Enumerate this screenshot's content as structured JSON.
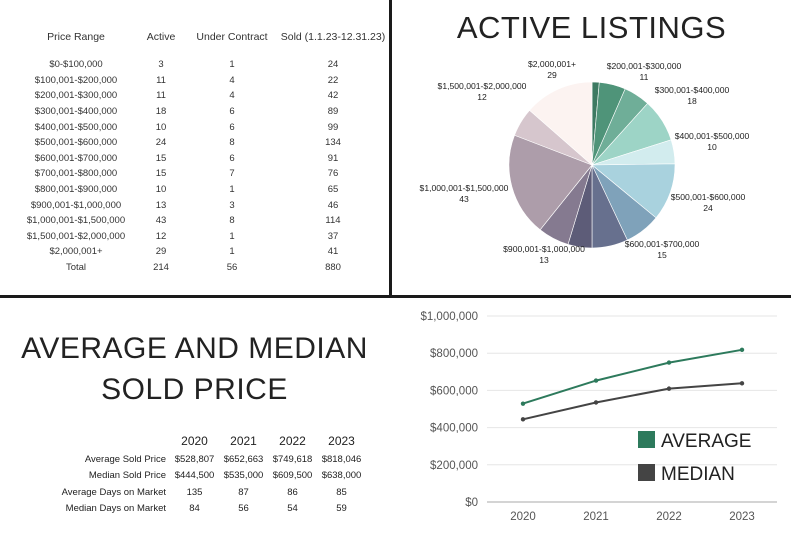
{
  "listing_table": {
    "headers": [
      "Price Range",
      "Active",
      "Under Contract",
      "Sold (1.1.23-12.31.23)"
    ],
    "rows": [
      [
        "$0-$100,000",
        "3",
        "1",
        "24"
      ],
      [
        "$100,001-$200,000",
        "11",
        "4",
        "22"
      ],
      [
        "$200,001-$300,000",
        "11",
        "4",
        "42"
      ],
      [
        "$300,001-$400,000",
        "18",
        "6",
        "89"
      ],
      [
        "$400,001-$500,000",
        "10",
        "6",
        "99"
      ],
      [
        "$500,001-$600,000",
        "24",
        "8",
        "134"
      ],
      [
        "$600,001-$700,000",
        "15",
        "6",
        "91"
      ],
      [
        "$700,001-$800,000",
        "15",
        "7",
        "76"
      ],
      [
        "$800,001-$900,000",
        "10",
        "1",
        "65"
      ],
      [
        "$900,001-$1,000,000",
        "13",
        "3",
        "46"
      ],
      [
        "$1,000,001-$1,500,000",
        "43",
        "8",
        "114"
      ],
      [
        "$1,500,001-$2,000,000",
        "12",
        "1",
        "37"
      ],
      [
        "$2,000,001+",
        "29",
        "1",
        "41"
      ],
      [
        "Total",
        "214",
        "56",
        "880"
      ]
    ]
  },
  "stats": {
    "title_line1": "AVERAGE AND MEDIAN",
    "title_line2": "SOLD PRICE",
    "years": [
      "2020",
      "2021",
      "2022",
      "2023"
    ],
    "rows": [
      {
        "label": "Average Sold Price",
        "values": [
          "$528,807",
          "$652,663",
          "$749,618",
          "$818,046"
        ]
      },
      {
        "label": "Median Sold Price",
        "values": [
          "$444,500",
          "$535,000",
          "$609,500",
          "$638,000"
        ]
      },
      {
        "label": "Average Days on Market",
        "values": [
          "135",
          "87",
          "86",
          "85"
        ]
      },
      {
        "label": "Median Days on Market",
        "values": [
          "84",
          "56",
          "54",
          "59"
        ]
      }
    ]
  },
  "chart_data": [
    {
      "type": "pie",
      "title": "ACTIVE LISTINGS",
      "start": "top, clockwise",
      "slices": [
        {
          "label": "$0-$100,000",
          "value": 3,
          "color": "#3d7a62",
          "show_label": false
        },
        {
          "label": "$100,001-$200,000",
          "value": 11,
          "color": "#4f9479",
          "show_label": false
        },
        {
          "label": "$200,001-$300,000",
          "value": 11,
          "color": "#6fae98",
          "show_label": true
        },
        {
          "label": "$300,001-$400,000",
          "value": 18,
          "color": "#9dd4c6",
          "show_label": true
        },
        {
          "label": "$400,001-$500,000",
          "value": 10,
          "color": "#d2ecee",
          "show_label": true
        },
        {
          "label": "$500,001-$600,000",
          "value": 24,
          "color": "#a9d2de",
          "show_label": true
        },
        {
          "label": "$600,001-$700,000",
          "value": 15,
          "color": "#7fa2ba",
          "show_label": true
        },
        {
          "label": "$700,001-$800,000",
          "value": 15,
          "color": "#67708e",
          "show_label": false
        },
        {
          "label": "$800,001-$900,000",
          "value": 10,
          "color": "#5d5c78",
          "show_label": false
        },
        {
          "label": "$900,001-$1,000,000",
          "value": 13,
          "color": "#857a90",
          "show_label": true
        },
        {
          "label": "$1,000,001-$1,500,000",
          "value": 43,
          "color": "#ad9daa",
          "show_label": true
        },
        {
          "label": "$1,500,001-$2,000,000",
          "value": 12,
          "color": "#d6c6cd",
          "show_label": true
        },
        {
          "label": "$2,000,001+",
          "value": 29,
          "color": "#fcf3f1",
          "show_label": true
        }
      ]
    },
    {
      "type": "line",
      "x": [
        "2020",
        "2021",
        "2022",
        "2023"
      ],
      "series": [
        {
          "name": "AVERAGE",
          "values": [
            528807,
            652663,
            749618,
            818046
          ],
          "color": "#2d7a5c"
        },
        {
          "name": "MEDIAN",
          "values": [
            444500,
            535000,
            609500,
            638000
          ],
          "color": "#444444"
        }
      ],
      "ylim": [
        0,
        1000000
      ],
      "yticks": [
        0,
        200000,
        400000,
        600000,
        800000,
        1000000
      ],
      "ytick_labels": [
        "$0",
        "$200,000",
        "$400,000",
        "$600,000",
        "$800,000",
        "$1,000,000"
      ],
      "grid": true,
      "legend_placement": "bottom-right"
    }
  ]
}
